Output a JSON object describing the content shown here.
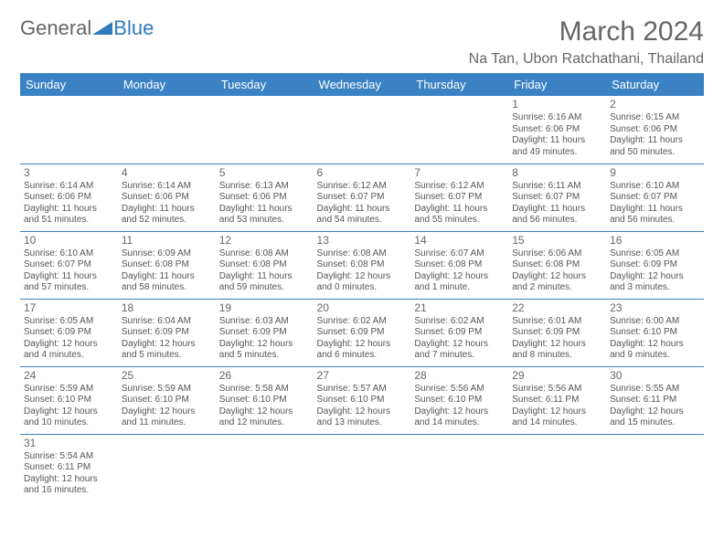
{
  "logo": {
    "text1": "General",
    "text2": "Blue",
    "triangle_color": "#2f7bbf"
  },
  "header": {
    "month_title": "March 2024",
    "location": "Na Tan, Ubon Ratchathani, Thailand"
  },
  "colors": {
    "header_bg": "#3a82c4",
    "header_fg": "#ffffff",
    "text": "#555555",
    "rule": "#3a82c4"
  },
  "day_headers": [
    "Sunday",
    "Monday",
    "Tuesday",
    "Wednesday",
    "Thursday",
    "Friday",
    "Saturday"
  ],
  "weeks": [
    [
      null,
      null,
      null,
      null,
      null,
      {
        "n": "1",
        "sr": "Sunrise: 6:16 AM",
        "ss": "Sunset: 6:06 PM",
        "dl": "Daylight: 11 hours and 49 minutes."
      },
      {
        "n": "2",
        "sr": "Sunrise: 6:15 AM",
        "ss": "Sunset: 6:06 PM",
        "dl": "Daylight: 11 hours and 50 minutes."
      }
    ],
    [
      {
        "n": "3",
        "sr": "Sunrise: 6:14 AM",
        "ss": "Sunset: 6:06 PM",
        "dl": "Daylight: 11 hours and 51 minutes."
      },
      {
        "n": "4",
        "sr": "Sunrise: 6:14 AM",
        "ss": "Sunset: 6:06 PM",
        "dl": "Daylight: 11 hours and 52 minutes."
      },
      {
        "n": "5",
        "sr": "Sunrise: 6:13 AM",
        "ss": "Sunset: 6:06 PM",
        "dl": "Daylight: 11 hours and 53 minutes."
      },
      {
        "n": "6",
        "sr": "Sunrise: 6:12 AM",
        "ss": "Sunset: 6:07 PM",
        "dl": "Daylight: 11 hours and 54 minutes."
      },
      {
        "n": "7",
        "sr": "Sunrise: 6:12 AM",
        "ss": "Sunset: 6:07 PM",
        "dl": "Daylight: 11 hours and 55 minutes."
      },
      {
        "n": "8",
        "sr": "Sunrise: 6:11 AM",
        "ss": "Sunset: 6:07 PM",
        "dl": "Daylight: 11 hours and 56 minutes."
      },
      {
        "n": "9",
        "sr": "Sunrise: 6:10 AM",
        "ss": "Sunset: 6:07 PM",
        "dl": "Daylight: 11 hours and 56 minutes."
      }
    ],
    [
      {
        "n": "10",
        "sr": "Sunrise: 6:10 AM",
        "ss": "Sunset: 6:07 PM",
        "dl": "Daylight: 11 hours and 57 minutes."
      },
      {
        "n": "11",
        "sr": "Sunrise: 6:09 AM",
        "ss": "Sunset: 6:08 PM",
        "dl": "Daylight: 11 hours and 58 minutes."
      },
      {
        "n": "12",
        "sr": "Sunrise: 6:08 AM",
        "ss": "Sunset: 6:08 PM",
        "dl": "Daylight: 11 hours and 59 minutes."
      },
      {
        "n": "13",
        "sr": "Sunrise: 6:08 AM",
        "ss": "Sunset: 6:08 PM",
        "dl": "Daylight: 12 hours and 0 minutes."
      },
      {
        "n": "14",
        "sr": "Sunrise: 6:07 AM",
        "ss": "Sunset: 6:08 PM",
        "dl": "Daylight: 12 hours and 1 minute."
      },
      {
        "n": "15",
        "sr": "Sunrise: 6:06 AM",
        "ss": "Sunset: 6:08 PM",
        "dl": "Daylight: 12 hours and 2 minutes."
      },
      {
        "n": "16",
        "sr": "Sunrise: 6:05 AM",
        "ss": "Sunset: 6:09 PM",
        "dl": "Daylight: 12 hours and 3 minutes."
      }
    ],
    [
      {
        "n": "17",
        "sr": "Sunrise: 6:05 AM",
        "ss": "Sunset: 6:09 PM",
        "dl": "Daylight: 12 hours and 4 minutes."
      },
      {
        "n": "18",
        "sr": "Sunrise: 6:04 AM",
        "ss": "Sunset: 6:09 PM",
        "dl": "Daylight: 12 hours and 5 minutes."
      },
      {
        "n": "19",
        "sr": "Sunrise: 6:03 AM",
        "ss": "Sunset: 6:09 PM",
        "dl": "Daylight: 12 hours and 5 minutes."
      },
      {
        "n": "20",
        "sr": "Sunrise: 6:02 AM",
        "ss": "Sunset: 6:09 PM",
        "dl": "Daylight: 12 hours and 6 minutes."
      },
      {
        "n": "21",
        "sr": "Sunrise: 6:02 AM",
        "ss": "Sunset: 6:09 PM",
        "dl": "Daylight: 12 hours and 7 minutes."
      },
      {
        "n": "22",
        "sr": "Sunrise: 6:01 AM",
        "ss": "Sunset: 6:09 PM",
        "dl": "Daylight: 12 hours and 8 minutes."
      },
      {
        "n": "23",
        "sr": "Sunrise: 6:00 AM",
        "ss": "Sunset: 6:10 PM",
        "dl": "Daylight: 12 hours and 9 minutes."
      }
    ],
    [
      {
        "n": "24",
        "sr": "Sunrise: 5:59 AM",
        "ss": "Sunset: 6:10 PM",
        "dl": "Daylight: 12 hours and 10 minutes."
      },
      {
        "n": "25",
        "sr": "Sunrise: 5:59 AM",
        "ss": "Sunset: 6:10 PM",
        "dl": "Daylight: 12 hours and 11 minutes."
      },
      {
        "n": "26",
        "sr": "Sunrise: 5:58 AM",
        "ss": "Sunset: 6:10 PM",
        "dl": "Daylight: 12 hours and 12 minutes."
      },
      {
        "n": "27",
        "sr": "Sunrise: 5:57 AM",
        "ss": "Sunset: 6:10 PM",
        "dl": "Daylight: 12 hours and 13 minutes."
      },
      {
        "n": "28",
        "sr": "Sunrise: 5:56 AM",
        "ss": "Sunset: 6:10 PM",
        "dl": "Daylight: 12 hours and 14 minutes."
      },
      {
        "n": "29",
        "sr": "Sunrise: 5:56 AM",
        "ss": "Sunset: 6:11 PM",
        "dl": "Daylight: 12 hours and 14 minutes."
      },
      {
        "n": "30",
        "sr": "Sunrise: 5:55 AM",
        "ss": "Sunset: 6:11 PM",
        "dl": "Daylight: 12 hours and 15 minutes."
      }
    ],
    [
      {
        "n": "31",
        "sr": "Sunrise: 5:54 AM",
        "ss": "Sunset: 6:11 PM",
        "dl": "Daylight: 12 hours and 16 minutes."
      },
      null,
      null,
      null,
      null,
      null,
      null
    ]
  ]
}
